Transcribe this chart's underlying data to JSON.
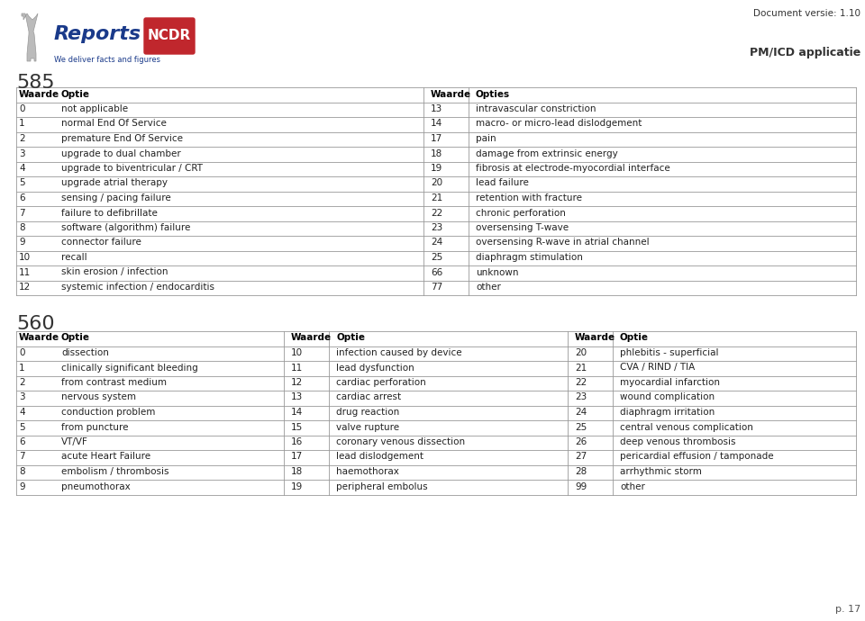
{
  "doc_version": "Document versie: 1.10",
  "pm_icd": "PM/ICD applicatie",
  "page_num": "p. 17",
  "section1_num": "585",
  "section1_headers": [
    "Waarde",
    "Optie",
    "Waarde",
    "Opties"
  ],
  "section1_left": [
    [
      "0",
      "not applicable"
    ],
    [
      "1",
      "normal End Of Service"
    ],
    [
      "2",
      "premature End Of Service"
    ],
    [
      "3",
      "upgrade to dual chamber"
    ],
    [
      "4",
      "upgrade to biventricular / CRT"
    ],
    [
      "5",
      "upgrade atrial therapy"
    ],
    [
      "6",
      "sensing / pacing failure"
    ],
    [
      "7",
      "failure to defibrillate"
    ],
    [
      "8",
      "software (algorithm) failure"
    ],
    [
      "9",
      "connector failure"
    ],
    [
      "10",
      "recall"
    ],
    [
      "11",
      "skin erosion / infection"
    ],
    [
      "12",
      "systemic infection / endocarditis"
    ]
  ],
  "section1_right": [
    [
      "13",
      "intravascular constriction"
    ],
    [
      "14",
      "macro- or micro-lead dislodgement"
    ],
    [
      "17",
      "pain"
    ],
    [
      "18",
      "damage from extrinsic energy"
    ],
    [
      "19",
      "fibrosis at electrode-myocordial interface"
    ],
    [
      "20",
      "lead failure"
    ],
    [
      "21",
      "retention with fracture"
    ],
    [
      "22",
      "chronic perforation"
    ],
    [
      "23",
      "oversensing T-wave"
    ],
    [
      "24",
      "oversensing R-wave in atrial channel"
    ],
    [
      "25",
      "diaphragm stimulation"
    ],
    [
      "66",
      "unknown"
    ],
    [
      "77",
      "other"
    ]
  ],
  "section2_num": "560",
  "section2_headers": [
    "Waarde",
    "Optie",
    "Waarde",
    "Optie",
    "Waarde",
    "Optie"
  ],
  "section2_col1": [
    [
      "0",
      "dissection"
    ],
    [
      "1",
      "clinically significant bleeding"
    ],
    [
      "2",
      "from contrast medium"
    ],
    [
      "3",
      "nervous system"
    ],
    [
      "4",
      "conduction problem"
    ],
    [
      "5",
      "from puncture"
    ],
    [
      "6",
      "VT/VF"
    ],
    [
      "7",
      "acute Heart Failure"
    ],
    [
      "8",
      "embolism / thrombosis"
    ],
    [
      "9",
      "pneumothorax"
    ]
  ],
  "section2_col2": [
    [
      "10",
      "infection caused by device"
    ],
    [
      "11",
      "lead dysfunction"
    ],
    [
      "12",
      "cardiac perforation"
    ],
    [
      "13",
      "cardiac arrest"
    ],
    [
      "14",
      "drug reaction"
    ],
    [
      "15",
      "valve rupture"
    ],
    [
      "16",
      "coronary venous dissection"
    ],
    [
      "17",
      "lead dislodgement"
    ],
    [
      "18",
      "haemothorax"
    ],
    [
      "19",
      "peripheral embolus"
    ]
  ],
  "section2_col3": [
    [
      "20",
      "phlebitis - superficial"
    ],
    [
      "21",
      "CVA / RIND / TIA"
    ],
    [
      "22",
      "myocardial infarction"
    ],
    [
      "23",
      "wound complication"
    ],
    [
      "24",
      "diaphragm irritation"
    ],
    [
      "25",
      "central venous complication"
    ],
    [
      "26",
      "deep venous thrombosis"
    ],
    [
      "27",
      "pericardial effusion / tamponade"
    ],
    [
      "28",
      "arrhythmic storm"
    ],
    [
      "99",
      "other"
    ]
  ],
  "bg_color": "#ffffff"
}
